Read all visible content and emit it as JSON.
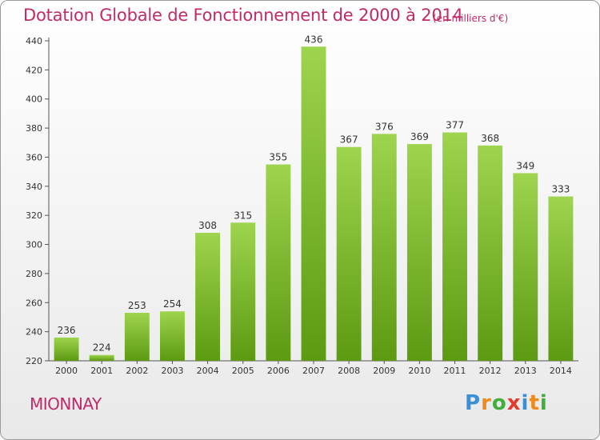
{
  "header": {
    "title": "Dotation Globale de Fonctionnement de 2000 à 2014",
    "subtitle": "(en milliers d'€)"
  },
  "footer": {
    "commune": "MIONNAY",
    "logo_letters": [
      "P",
      "r",
      "o",
      "x",
      "i",
      "t",
      "i"
    ],
    "logo_colors": [
      "#3b8fd6",
      "#f08a1c",
      "#3fae3a",
      "#e63a2e",
      "#3b8fd6",
      "#f08a1c",
      "#3fae3a"
    ]
  },
  "colors": {
    "bar_top": "#9ed44e",
    "bar_bottom": "#5c9a12",
    "text_accent": "#c02a68"
  },
  "chart_data": {
    "type": "bar",
    "categories": [
      "2000",
      "2001",
      "2002",
      "2003",
      "2004",
      "2005",
      "2006",
      "2007",
      "2008",
      "2009",
      "2010",
      "2011",
      "2012",
      "2013",
      "2014"
    ],
    "values": [
      236,
      224,
      253,
      254,
      308,
      315,
      355,
      436,
      367,
      376,
      369,
      377,
      368,
      349,
      333
    ],
    "ylim": [
      220,
      440
    ],
    "yticks": [
      220,
      240,
      260,
      280,
      300,
      320,
      340,
      360,
      380,
      400,
      420,
      440
    ],
    "grid": false,
    "data_labels": true
  }
}
